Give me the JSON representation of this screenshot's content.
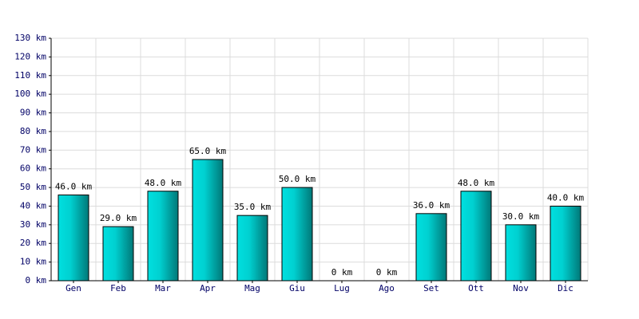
{
  "chart_data": {
    "type": "bar",
    "categories": [
      "Gen",
      "Feb",
      "Mar",
      "Apr",
      "Mag",
      "Giu",
      "Lug",
      "Ago",
      "Set",
      "Ott",
      "Nov",
      "Dic"
    ],
    "values": [
      46,
      29,
      48,
      65,
      35,
      50,
      0,
      0,
      36,
      48,
      30,
      40
    ],
    "value_labels": [
      "46.0 km",
      "29.0 km",
      "48.0 km",
      "65.0 km",
      "35.0 km",
      "50.0 km",
      "0 km",
      "0 km",
      "36.0 km",
      "48.0 km",
      "30.0 km",
      "40.0 km"
    ],
    "color": "#00e0e0",
    "ylim": [
      0,
      130
    ],
    "yticks": [
      {
        "value": 0,
        "label": "0 km"
      },
      {
        "value": 10,
        "label": "10 km"
      },
      {
        "value": 20,
        "label": "20 km"
      },
      {
        "value": 30,
        "label": "30 km"
      },
      {
        "value": 40,
        "label": "40 km"
      },
      {
        "value": 50,
        "label": "50 km"
      },
      {
        "value": 60,
        "label": "60 km"
      },
      {
        "value": 70,
        "label": "70 km"
      },
      {
        "value": 80,
        "label": "80 km"
      },
      {
        "value": 90,
        "label": "90 km"
      },
      {
        "value": 100,
        "label": "100 km"
      },
      {
        "value": 110,
        "label": "110 km"
      },
      {
        "value": 120,
        "label": "120 km"
      },
      {
        "value": 130,
        "label": "130 km"
      }
    ],
    "grid": true
  }
}
